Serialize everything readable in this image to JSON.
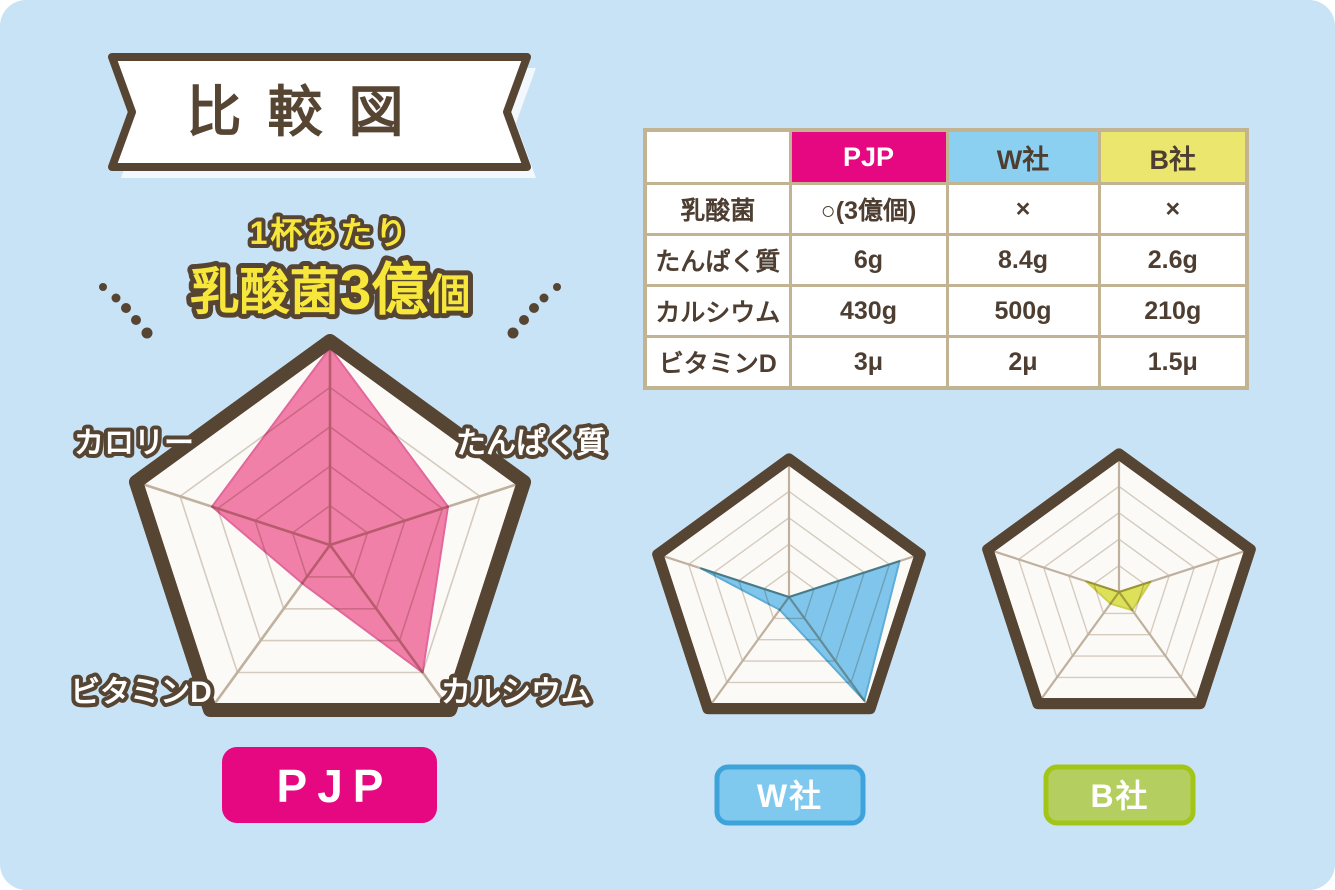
{
  "banner": {
    "title": "比較図"
  },
  "headline": {
    "line1": "1杯あたり",
    "line2_a": "乳酸菌",
    "line2_b": "3億",
    "line2_c": "個"
  },
  "radar_axis_labels": {
    "calorie": "カロリー",
    "protein": "たんぱく質",
    "vitamin_d": "ビタミンD",
    "calcium": "カルシウム"
  },
  "badges": {
    "pjp": "PJP",
    "w": "W社",
    "b": "B社"
  },
  "colors": {
    "background": "#c9e3f6",
    "brown_outline": "#574534",
    "text_brown": "#4d3e31",
    "headline_yellow": "#f8e73b",
    "accent_pink": "#e50881",
    "radar_pink": "#f17da7",
    "radar_blue": "#7cc5ec",
    "radar_yellow": "#dde054",
    "table_border_tan": "#c2b393",
    "header_blue": "#8bd0f0",
    "header_yellow": "#ebe76e",
    "badge_blue_fill": "#7fc9ee",
    "badge_blue_border": "#3ea3db",
    "badge_green_fill": "#b4cf60",
    "badge_green_border": "#a2c517"
  },
  "table": {
    "columns": [
      {
        "label": "",
        "bg": "#ffffff",
        "color": "#4d3e31"
      },
      {
        "label": "PJP",
        "bg": "#e50881",
        "color": "#ffffff"
      },
      {
        "label": "W社",
        "bg": "#8bd0f0",
        "color": "#4d3e31"
      },
      {
        "label": "B社",
        "bg": "#ebe76e",
        "color": "#4d3e31"
      }
    ],
    "rows": [
      {
        "cells": [
          "乳酸菌",
          "○(3億個)",
          "×",
          "×"
        ]
      },
      {
        "cells": [
          "たんぱく質",
          "6g",
          "8.4g",
          "2.6g"
        ]
      },
      {
        "cells": [
          "カルシウム",
          "430g",
          "500g",
          "210g"
        ]
      },
      {
        "cells": [
          "ビタミンD",
          "3μ",
          "2μ",
          "1.5μ"
        ]
      }
    ]
  },
  "chart_data": [
    {
      "id": "pjp",
      "type": "radar",
      "title": "PJP",
      "axes": [
        "乳酸菌",
        "たんぱく質",
        "カルシウム",
        "ビタミンD",
        "カロリー"
      ],
      "values": [
        1.0,
        0.63,
        0.8,
        0.24,
        0.63
      ],
      "value_range": [
        0,
        1
      ],
      "rings": 5,
      "fill": "#f17da7",
      "edge": "#e2639a",
      "annotation": "1杯あたり 乳酸菌3億個"
    },
    {
      "id": "w",
      "type": "radar",
      "title": "W社",
      "axes": [
        "乳酸菌",
        "たんぱく質",
        "カルシウム",
        "ビタミンD",
        "カロリー"
      ],
      "values": [
        0.0,
        0.88,
        0.97,
        0.12,
        0.7
      ],
      "value_range": [
        0,
        1
      ],
      "rings": 5,
      "fill": "#7cc5ec",
      "edge": "#58abd6"
    },
    {
      "id": "b",
      "type": "radar",
      "title": "B社",
      "axes": [
        "乳酸菌",
        "たんぱく質",
        "カルシウム",
        "ビタミンD",
        "カロリー"
      ],
      "values": [
        0.0,
        0.25,
        0.17,
        0.11,
        0.26
      ],
      "value_range": [
        0,
        1
      ],
      "rings": 5,
      "fill": "#dde054",
      "edge": "#c9cf49"
    },
    {
      "type": "table",
      "title": "比較図",
      "columns": [
        "",
        "PJP",
        "W社",
        "B社"
      ],
      "rows": [
        [
          "乳酸菌",
          "○(3億個)",
          "×",
          "×"
        ],
        [
          "たんぱく質",
          "6g",
          "8.4g",
          "2.6g"
        ],
        [
          "カルシウム",
          "430g",
          "500g",
          "210g"
        ],
        [
          "ビタミンD",
          "3μ",
          "2μ",
          "1.5μ"
        ]
      ]
    }
  ]
}
